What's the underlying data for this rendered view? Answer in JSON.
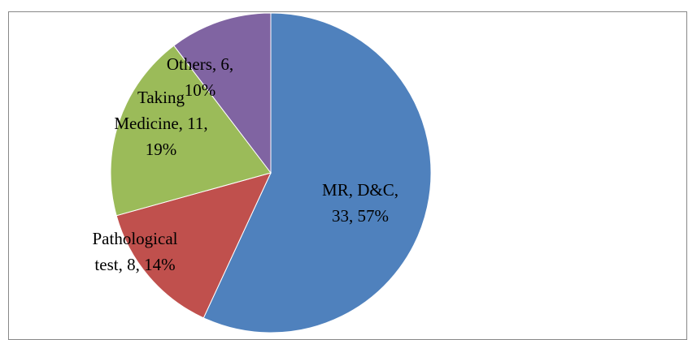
{
  "chart_data": {
    "type": "pie",
    "values": [
      33,
      8,
      11,
      6
    ],
    "value_labels": [
      [
        "MR, D&C,",
        "33, 57%"
      ],
      [
        "Pathological",
        "test, 8, 14%"
      ],
      [
        "Taking",
        "Medicine, 11,",
        "19%"
      ],
      [
        "Others, 6,",
        "10%"
      ]
    ],
    "colors": [
      "#4f81bd",
      "#c0504d",
      "#9bbb59",
      "#8064a2"
    ]
  }
}
